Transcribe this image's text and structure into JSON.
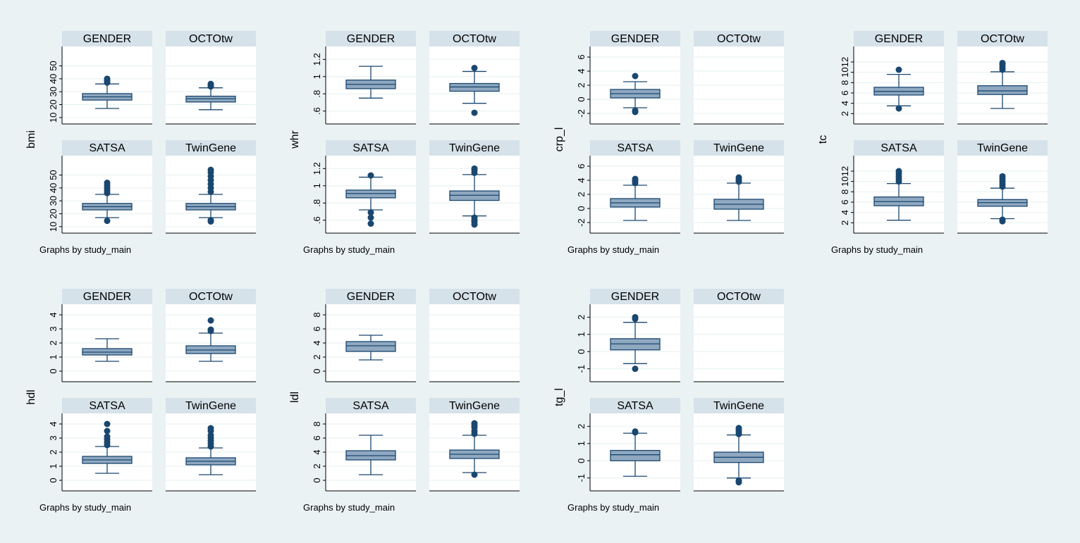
{
  "colors": {
    "background": "#eaf2f3",
    "plot_region": "#ffffff",
    "strip": "#d6e2ea",
    "grid": "#eaf2f3",
    "box_fill": "#8fa8c0",
    "box_line": "#1a476f",
    "text": "#000000"
  },
  "chart_data": [
    {
      "type": "box",
      "variable": "bmi",
      "ylabel": "bmi",
      "note": "Graphs by study_main",
      "ylim": [
        5,
        65
      ],
      "yticks": [
        10,
        20,
        30,
        40,
        50
      ],
      "ytick_labels": [
        "10",
        "20",
        "30",
        "40",
        "50"
      ],
      "panels": [
        {
          "name": "GENDER",
          "box": {
            "min": 17,
            "q1": 23.5,
            "median": 26,
            "q3": 28.5,
            "max": 36
          },
          "outliers": [
            37,
            38,
            39,
            40
          ]
        },
        {
          "name": "OCTOtw",
          "box": {
            "min": 16,
            "q1": 22,
            "median": 24.5,
            "q3": 26.5,
            "max": 33
          },
          "outliers": [
            34,
            35,
            36
          ]
        },
        {
          "name": "SATSA",
          "box": {
            "min": 17,
            "q1": 23,
            "median": 25.5,
            "q3": 28,
            "max": 35
          },
          "outliers": [
            14.5,
            36,
            38,
            40,
            42,
            44
          ]
        },
        {
          "name": "TwinGene",
          "box": {
            "min": 17,
            "q1": 23,
            "median": 25.5,
            "q3": 28,
            "max": 35
          },
          "outliers": [
            14,
            15,
            37,
            40,
            43,
            46,
            49,
            52,
            54
          ]
        }
      ]
    },
    {
      "type": "box",
      "variable": "whr",
      "ylabel": "whr",
      "note": "Graphs by study_main",
      "ylim": [
        0.45,
        1.35
      ],
      "yticks": [
        0.6,
        0.8,
        1.0,
        1.2
      ],
      "ytick_labels": [
        ".6",
        ".8",
        "1",
        "1.2"
      ],
      "panels": [
        {
          "name": "GENDER",
          "box": {
            "min": 0.75,
            "q1": 0.86,
            "median": 0.91,
            "q3": 0.96,
            "max": 1.12
          },
          "outliers": []
        },
        {
          "name": "OCTOtw",
          "box": {
            "min": 0.69,
            "q1": 0.83,
            "median": 0.88,
            "q3": 0.92,
            "max": 1.06
          },
          "outliers": [
            0.58,
            1.1
          ]
        },
        {
          "name": "SATSA",
          "box": {
            "min": 0.72,
            "q1": 0.86,
            "median": 0.91,
            "q3": 0.95,
            "max": 1.1
          },
          "outliers": [
            0.56,
            0.63,
            0.69,
            1.12
          ]
        },
        {
          "name": "TwinGene",
          "box": {
            "min": 0.65,
            "q1": 0.83,
            "median": 0.89,
            "q3": 0.94,
            "max": 1.13
          },
          "outliers": [
            0.55,
            0.58,
            0.6,
            0.63,
            1.15,
            1.18,
            1.2
          ]
        }
      ]
    },
    {
      "type": "box",
      "variable": "crp_l",
      "ylabel": "crp_l",
      "note": "Graphs by study_main",
      "ylim": [
        -3.5,
        7.5
      ],
      "yticks": [
        -2,
        0,
        2,
        4,
        6
      ],
      "ytick_labels": [
        "-2",
        "0",
        "2",
        "4",
        "6"
      ],
      "panels": [
        {
          "name": "GENDER",
          "box": {
            "min": -1.2,
            "q1": 0.2,
            "median": 0.8,
            "q3": 1.4,
            "max": 2.5
          },
          "outliers": [
            -1.8,
            -1.6,
            3.3
          ]
        },
        {
          "name": "OCTOtw",
          "box": null,
          "outliers": []
        },
        {
          "name": "SATSA",
          "box": {
            "min": -1.7,
            "q1": 0.2,
            "median": 0.8,
            "q3": 1.4,
            "max": 3.3
          },
          "outliers": [
            3.6,
            3.9,
            4.2
          ]
        },
        {
          "name": "TwinGene",
          "box": {
            "min": -1.7,
            "q1": -0.1,
            "median": 0.6,
            "q3": 1.3,
            "max": 3.6
          },
          "outliers": [
            3.8,
            4.1,
            4.4
          ]
        }
      ]
    },
    {
      "type": "box",
      "variable": "tc",
      "ylabel": "tc",
      "note": "Graphs by study_main",
      "ylim": [
        0,
        15
      ],
      "yticks": [
        2,
        4,
        6,
        8,
        10,
        12
      ],
      "ytick_labels": [
        "2",
        "4",
        "6",
        "8",
        "10",
        "12"
      ],
      "panels": [
        {
          "name": "GENDER",
          "box": {
            "min": 3.5,
            "q1": 5.6,
            "median": 6.3,
            "q3": 7.1,
            "max": 9.6
          },
          "outliers": [
            3,
            10.5
          ]
        },
        {
          "name": "OCTOtw",
          "box": {
            "min": 3,
            "q1": 5.7,
            "median": 6.4,
            "q3": 7.4,
            "max": 10.1
          },
          "outliers": [
            10.5,
            11,
            11.5,
            11.8
          ]
        },
        {
          "name": "SATSA",
          "box": {
            "min": 2.5,
            "q1": 5.3,
            "median": 6.1,
            "q3": 7,
            "max": 9.6
          },
          "outliers": [
            10,
            10.5,
            11,
            11.5,
            12
          ]
        },
        {
          "name": "TwinGene",
          "box": {
            "min": 2.8,
            "q1": 5.2,
            "median": 5.9,
            "q3": 6.5,
            "max": 8.7
          },
          "outliers": [
            2.3,
            2.6,
            9,
            9.5,
            10,
            10.5,
            11
          ]
        }
      ]
    },
    {
      "type": "box",
      "variable": "hdl",
      "ylabel": "hdl",
      "note": "Graphs by study_main",
      "ylim": [
        -0.75,
        4.75
      ],
      "yticks": [
        0,
        1,
        2,
        3,
        4
      ],
      "ytick_labels": [
        "0",
        "1",
        "2",
        "3",
        "4"
      ],
      "panels": [
        {
          "name": "GENDER",
          "box": {
            "min": 0.7,
            "q1": 1.15,
            "median": 1.35,
            "q3": 1.6,
            "max": 2.3
          },
          "outliers": []
        },
        {
          "name": "OCTOtw",
          "box": {
            "min": 0.7,
            "q1": 1.25,
            "median": 1.5,
            "q3": 1.8,
            "max": 2.7
          },
          "outliers": [
            2.85,
            2.95,
            3.6
          ]
        },
        {
          "name": "SATSA",
          "box": {
            "min": 0.5,
            "q1": 1.2,
            "median": 1.45,
            "q3": 1.7,
            "max": 2.4
          },
          "outliers": [
            2.5,
            2.7,
            2.9,
            3.1,
            3.5,
            4
          ]
        },
        {
          "name": "TwinGene",
          "box": {
            "min": 0.4,
            "q1": 1.1,
            "median": 1.35,
            "q3": 1.6,
            "max": 2.3
          },
          "outliers": [
            2.4,
            2.6,
            2.8,
            3,
            3.2,
            3.5,
            3.7
          ]
        }
      ]
    },
    {
      "type": "box",
      "variable": "ldl",
      "ylabel": "ldl",
      "note": "Graphs by study_main",
      "ylim": [
        -1.5,
        9.5
      ],
      "yticks": [
        0,
        2,
        4,
        6,
        8
      ],
      "ytick_labels": [
        "0",
        "2",
        "4",
        "6",
        "8"
      ],
      "panels": [
        {
          "name": "GENDER",
          "box": {
            "min": 1.6,
            "q1": 2.8,
            "median": 3.6,
            "q3": 4.2,
            "max": 5.1
          },
          "outliers": []
        },
        {
          "name": "OCTOtw",
          "box": null,
          "outliers": []
        },
        {
          "name": "SATSA",
          "box": {
            "min": 0.8,
            "q1": 2.9,
            "median": 3.5,
            "q3": 4.2,
            "max": 6.4
          },
          "outliers": []
        },
        {
          "name": "TwinGene",
          "box": {
            "min": 1.1,
            "q1": 3.1,
            "median": 3.7,
            "q3": 4.3,
            "max": 6.4
          },
          "outliers": [
            0.8,
            6.6,
            7,
            7.5,
            7.8,
            8.1
          ]
        }
      ]
    },
    {
      "type": "box",
      "variable": "tg_l",
      "ylabel": "tg_l",
      "note": "Graphs by study_main",
      "ylim": [
        -1.75,
        2.75
      ],
      "yticks": [
        -1,
        0,
        1,
        2
      ],
      "ytick_labels": [
        "-1",
        "0",
        "1",
        "2"
      ],
      "panels": [
        {
          "name": "GENDER",
          "box": {
            "min": -0.7,
            "q1": 0.1,
            "median": 0.45,
            "q3": 0.75,
            "max": 1.7
          },
          "outliers": [
            -1,
            1.9,
            2
          ]
        },
        {
          "name": "OCTOtw",
          "box": null,
          "outliers": []
        },
        {
          "name": "SATSA",
          "box": {
            "min": -0.9,
            "q1": 0,
            "median": 0.35,
            "q3": 0.6,
            "max": 1.6
          },
          "outliers": [
            1.65,
            1.7
          ]
        },
        {
          "name": "TwinGene",
          "box": {
            "min": -1,
            "q1": -0.1,
            "median": 0.2,
            "q3": 0.5,
            "max": 1.5
          },
          "outliers": [
            -1.25,
            -1.15,
            1.55,
            1.65,
            1.75,
            1.85,
            1.9
          ]
        }
      ]
    }
  ]
}
